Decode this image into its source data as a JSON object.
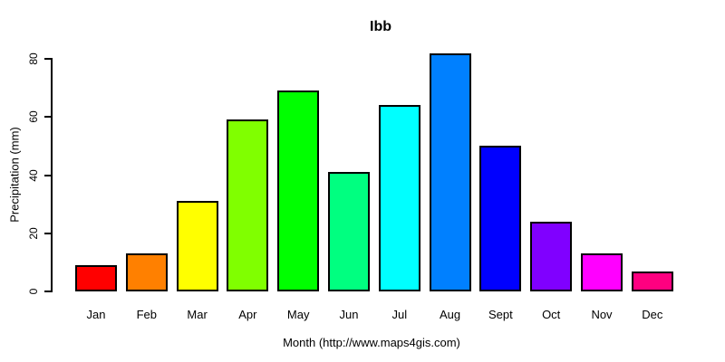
{
  "title": "Ibb",
  "chart_data": {
    "type": "bar",
    "title": "Ibb",
    "xlabel": "Month (http://www.maps4gis.com)",
    "ylabel": "Precipitation (mm)",
    "categories": [
      "Jan",
      "Feb",
      "Mar",
      "Apr",
      "May",
      "Jun",
      "Jul",
      "Aug",
      "Sept",
      "Oct",
      "Nov",
      "Dec"
    ],
    "values": [
      9,
      13,
      31,
      59,
      69,
      41,
      64,
      82,
      50,
      24,
      13,
      7
    ],
    "bar_colors": [
      "#FF0000",
      "#FF8000",
      "#FFFF00",
      "#80FF00",
      "#00FF00",
      "#00FF80",
      "#00FFFF",
      "#0080FF",
      "#0000FF",
      "#8000FF",
      "#FF00FF",
      "#FF0080"
    ],
    "bar_border_color": "#000000",
    "axis_color": "#000000",
    "background_color": "#FFFFFF",
    "ylim": [
      0,
      80
    ],
    "yticks": [
      0,
      20,
      40,
      60,
      80
    ],
    "grid": false,
    "legend": "none"
  }
}
